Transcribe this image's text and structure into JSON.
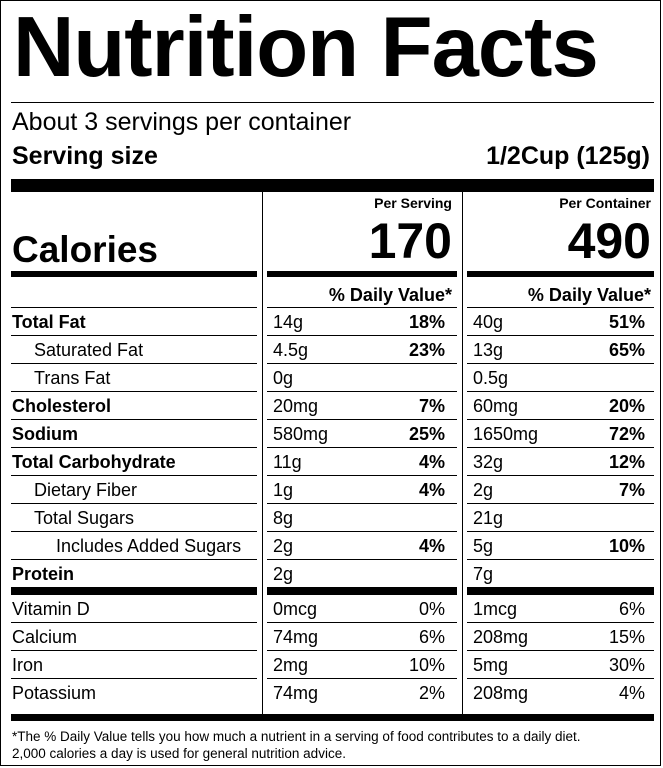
{
  "title": "Nutrition Facts",
  "servings_per_container": "About 3 servings per container",
  "serving_size_label": "Serving size",
  "serving_size_value": "1/2Cup (125g)",
  "calories_label": "Calories",
  "per_serving_label": "Per Serving",
  "per_container_label": "Per Container",
  "calories_per_serving": "170",
  "calories_per_container": "490",
  "dv_header": "% Daily Value*",
  "nutrients": [
    {
      "name": "Total Fat",
      "bold": true,
      "indent": 0,
      "serving_amt": "14g",
      "serving_dv": "18%",
      "container_amt": "40g",
      "container_dv": "51%"
    },
    {
      "name": "Saturated Fat",
      "bold": false,
      "indent": 1,
      "serving_amt": "4.5g",
      "serving_dv": "23%",
      "container_amt": "13g",
      "container_dv": "65%"
    },
    {
      "name": "Trans Fat",
      "bold": false,
      "indent": 1,
      "serving_amt": "0g",
      "serving_dv": "",
      "container_amt": "0.5g",
      "container_dv": ""
    },
    {
      "name": "Cholesterol",
      "bold": true,
      "indent": 0,
      "serving_amt": "20mg",
      "serving_dv": "7%",
      "container_amt": "60mg",
      "container_dv": "20%"
    },
    {
      "name": "Sodium",
      "bold": true,
      "indent": 0,
      "serving_amt": "580mg",
      "serving_dv": "25%",
      "container_amt": "1650mg",
      "container_dv": "72%"
    },
    {
      "name": "Total Carbohydrate",
      "bold": true,
      "indent": 0,
      "serving_amt": "11g",
      "serving_dv": "4%",
      "container_amt": "32g",
      "container_dv": "12%"
    },
    {
      "name": "Dietary Fiber",
      "bold": false,
      "indent": 1,
      "serving_amt": "1g",
      "serving_dv": "4%",
      "container_amt": "2g",
      "container_dv": "7%"
    },
    {
      "name": "Total Sugars",
      "bold": false,
      "indent": 1,
      "serving_amt": "8g",
      "serving_dv": "",
      "container_amt": "21g",
      "container_dv": ""
    },
    {
      "name": "Includes Added Sugars",
      "bold": false,
      "indent": 2,
      "serving_amt": "2g",
      "serving_dv": "4%",
      "container_amt": "5g",
      "container_dv": "10%"
    },
    {
      "name": "Protein",
      "bold": true,
      "indent": 0,
      "serving_amt": "2g",
      "serving_dv": "",
      "container_amt": "7g",
      "container_dv": ""
    }
  ],
  "vitamins": [
    {
      "name": "Vitamin D",
      "serving_amt": "0mcg",
      "serving_dv": "0%",
      "container_amt": "1mcg",
      "container_dv": "6%"
    },
    {
      "name": "Calcium",
      "serving_amt": "74mg",
      "serving_dv": "6%",
      "container_amt": "208mg",
      "container_dv": "15%"
    },
    {
      "name": "Iron",
      "serving_amt": "2mg",
      "serving_dv": "10%",
      "container_amt": "5mg",
      "container_dv": "30%"
    },
    {
      "name": "Potassium",
      "serving_amt": "74mg",
      "serving_dv": "2%",
      "container_amt": "208mg",
      "container_dv": "4%"
    }
  ],
  "footnote_line1": "*The % Daily Value tells you how much a nutrient in a serving of food contributes to a daily diet.",
  "footnote_line2": "2,000 calories a day is used for general nutrition advice."
}
